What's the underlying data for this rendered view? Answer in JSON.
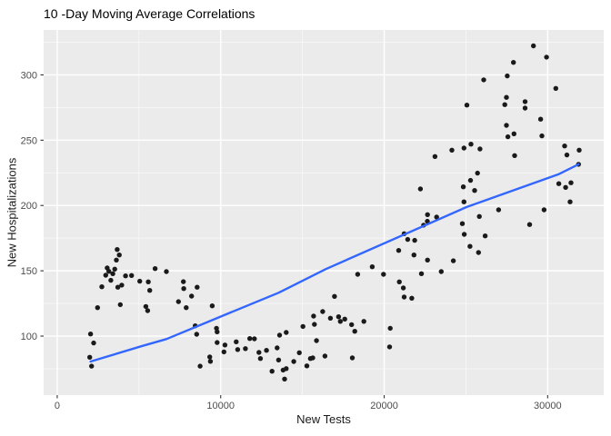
{
  "chart_data": {
    "type": "scatter",
    "title": "10 -Day Moving Average Correlations",
    "xlabel": "New Tests",
    "ylabel": "New Hospitalizations",
    "x_ticks": [
      0,
      10000,
      20000,
      30000
    ],
    "x_minor": [
      5000,
      15000,
      25000
    ],
    "y_ticks": [
      100,
      150,
      200,
      250,
      300
    ],
    "y_minor": [
      75,
      125,
      175,
      225,
      275,
      325
    ],
    "xlim": [
      -830,
      33430
    ],
    "ylim": [
      54.8,
      334.4
    ],
    "grid": true,
    "legend_position": "none",
    "colors": {
      "panel": "#EBEBEB",
      "grid_major": "#FFFFFF",
      "grid_minor": "#FFFFFF",
      "point": "#1A1A1A",
      "smooth": "#3366FF",
      "axis_text": "#4D4D4D",
      "tick_mark": "#333333"
    },
    "points": [
      [
        3670,
        166.3
      ],
      [
        3800,
        162.1
      ],
      [
        3620,
        158.2
      ],
      [
        3060,
        152.2
      ],
      [
        3160,
        149.6
      ],
      [
        3520,
        151.3
      ],
      [
        3400,
        147.8
      ],
      [
        2970,
        146.6
      ],
      [
        3280,
        142.7
      ],
      [
        4180,
        146.1
      ],
      [
        4550,
        146.4
      ],
      [
        2730,
        137.8
      ],
      [
        3710,
        137.4
      ],
      [
        3950,
        139.0
      ],
      [
        5050,
        142.0
      ],
      [
        5570,
        141.5
      ],
      [
        5660,
        135.0
      ],
      [
        5990,
        151.7
      ],
      [
        6680,
        149.4
      ],
      [
        3860,
        124.1
      ],
      [
        2470,
        121.8
      ],
      [
        5420,
        122.7
      ],
      [
        5530,
        119.5
      ],
      [
        2040,
        101.6
      ],
      [
        2230,
        94.7
      ],
      [
        1990,
        83.8
      ],
      [
        2100,
        77.0
      ],
      [
        7720,
        141.7
      ],
      [
        7740,
        136.4
      ],
      [
        8220,
        130.6
      ],
      [
        8560,
        137.4
      ],
      [
        7420,
        126.4
      ],
      [
        7890,
        121.8
      ],
      [
        8440,
        107.9
      ],
      [
        8530,
        101.4
      ],
      [
        8740,
        77.0
      ],
      [
        9330,
        84.0
      ],
      [
        9370,
        80.7
      ],
      [
        9480,
        123.2
      ],
      [
        9740,
        106.0
      ],
      [
        9780,
        103.3
      ],
      [
        9780,
        95.1
      ],
      [
        10200,
        87.9
      ],
      [
        10260,
        93.2
      ],
      [
        10950,
        95.6
      ],
      [
        11040,
        89.7
      ],
      [
        11510,
        90.4
      ],
      [
        11780,
        98.1
      ],
      [
        12060,
        97.9
      ],
      [
        12340,
        87.5
      ],
      [
        12430,
        82.8
      ],
      [
        12800,
        89.1
      ],
      [
        13140,
        73.1
      ],
      [
        13450,
        91.0
      ],
      [
        13540,
        81.7
      ],
      [
        13820,
        74.0
      ],
      [
        13910,
        67.1
      ],
      [
        14010,
        75.1
      ],
      [
        13600,
        100.7
      ],
      [
        14010,
        102.8
      ],
      [
        14470,
        80.5
      ],
      [
        14810,
        87.3
      ],
      [
        15030,
        107.4
      ],
      [
        15270,
        77.2
      ],
      [
        15490,
        82.8
      ],
      [
        15630,
        83.3
      ],
      [
        15680,
        115.3
      ],
      [
        15730,
        109.0
      ],
      [
        15860,
        96.5
      ],
      [
        16240,
        118.8
      ],
      [
        16380,
        84.7
      ],
      [
        16960,
        130.4
      ],
      [
        16710,
        113.7
      ],
      [
        17210,
        114.8
      ],
      [
        17320,
        111.3
      ],
      [
        17590,
        113.0
      ],
      [
        18010,
        108.8
      ],
      [
        18200,
        103.7
      ],
      [
        18760,
        111.3
      ],
      [
        18050,
        83.3
      ],
      [
        18380,
        147.3
      ],
      [
        19270,
        153.1
      ],
      [
        19960,
        147.3
      ],
      [
        20370,
        106.0
      ],
      [
        20330,
        91.7
      ],
      [
        20890,
        165.6
      ],
      [
        20930,
        141.5
      ],
      [
        21170,
        136.9
      ],
      [
        21220,
        129.9
      ],
      [
        21690,
        129.0
      ],
      [
        21220,
        178.4
      ],
      [
        21440,
        174.0
      ],
      [
        21870,
        173.3
      ],
      [
        21820,
        162.1
      ],
      [
        22410,
        184.9
      ],
      [
        22640,
        187.9
      ],
      [
        22650,
        193.0
      ],
      [
        23210,
        191.1
      ],
      [
        24230,
        157.7
      ],
      [
        22650,
        158.2
      ],
      [
        22280,
        147.8
      ],
      [
        23490,
        149.4
      ],
      [
        24780,
        186.1
      ],
      [
        24900,
        177.9
      ],
      [
        25820,
        191.6
      ],
      [
        27000,
        196.7
      ],
      [
        29780,
        196.7
      ],
      [
        28900,
        185.4
      ],
      [
        26180,
        176.7
      ],
      [
        25250,
        168.7
      ],
      [
        25770,
        164.0
      ],
      [
        29130,
        322.2
      ],
      [
        29930,
        313.6
      ],
      [
        27910,
        309.6
      ],
      [
        27530,
        299.2
      ],
      [
        26090,
        296.2
      ],
      [
        30500,
        289.7
      ],
      [
        27480,
        282.8
      ],
      [
        28620,
        279.5
      ],
      [
        28620,
        274.6
      ],
      [
        27380,
        277.2
      ],
      [
        25060,
        276.9
      ],
      [
        29570,
        266.1
      ],
      [
        27480,
        261.4
      ],
      [
        27940,
        254.9
      ],
      [
        27570,
        252.6
      ],
      [
        29650,
        253.3
      ],
      [
        25310,
        247.0
      ],
      [
        24880,
        244.0
      ],
      [
        24140,
        242.4
      ],
      [
        25860,
        243.3
      ],
      [
        23110,
        237.5
      ],
      [
        27980,
        238.2
      ],
      [
        31040,
        245.6
      ],
      [
        31930,
        242.4
      ],
      [
        31180,
        238.7
      ],
      [
        31890,
        231.5
      ],
      [
        25710,
        224.8
      ],
      [
        25280,
        219.2
      ],
      [
        24840,
        214.3
      ],
      [
        25530,
        211.5
      ],
      [
        22220,
        212.7
      ],
      [
        30680,
        216.7
      ],
      [
        31100,
        213.9
      ],
      [
        31430,
        217.4
      ],
      [
        31370,
        202.8
      ],
      [
        24880,
        202.8
      ]
    ],
    "smooth_line": [
      [
        2040,
        80.5
      ],
      [
        5050,
        91.9
      ],
      [
        6680,
        97.7
      ],
      [
        10070,
        115.3
      ],
      [
        13540,
        133.2
      ],
      [
        16420,
        151.3
      ],
      [
        25030,
        198.8
      ],
      [
        30700,
        224.1
      ],
      [
        31890,
        231.5
      ]
    ]
  }
}
